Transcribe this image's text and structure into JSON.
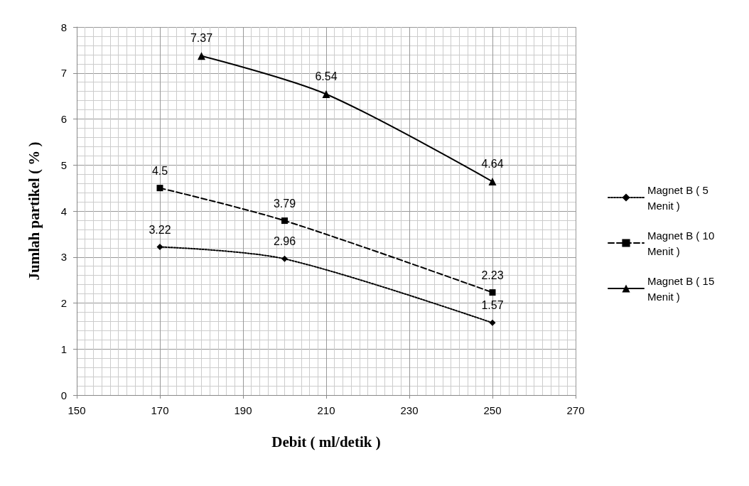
{
  "chart_data": {
    "type": "line",
    "xlabel": "Debit ( ml/detik )",
    "ylabel": "Jumlah partikel ( % )",
    "xlim": [
      150,
      270
    ],
    "xticks": [
      150,
      170,
      190,
      210,
      230,
      250,
      270
    ],
    "ylim": [
      0,
      8
    ],
    "yticks": [
      0,
      1,
      2,
      3,
      4,
      5,
      6,
      7,
      8
    ],
    "grid": true,
    "legend": "right",
    "data_labels": true,
    "series": [
      {
        "name": "Magnet B ( 5 Menit )",
        "color": "#000000",
        "x": [
          170,
          200,
          250
        ],
        "values": [
          3.22,
          2.96,
          1.57
        ],
        "marker": "diamond",
        "line_style": "dotted"
      },
      {
        "name": "Magnet B ( 10 Menit )",
        "color": "#000000",
        "x": [
          170,
          200,
          250
        ],
        "values": [
          4.5,
          3.79,
          2.23
        ],
        "marker": "square",
        "line_style": "dashed"
      },
      {
        "name": "Magnet B ( 15 Menit )",
        "color": "#000000",
        "x": [
          180,
          210,
          250
        ],
        "values": [
          7.37,
          6.54,
          4.64
        ],
        "marker": "triangle",
        "line_style": "solid"
      }
    ]
  }
}
